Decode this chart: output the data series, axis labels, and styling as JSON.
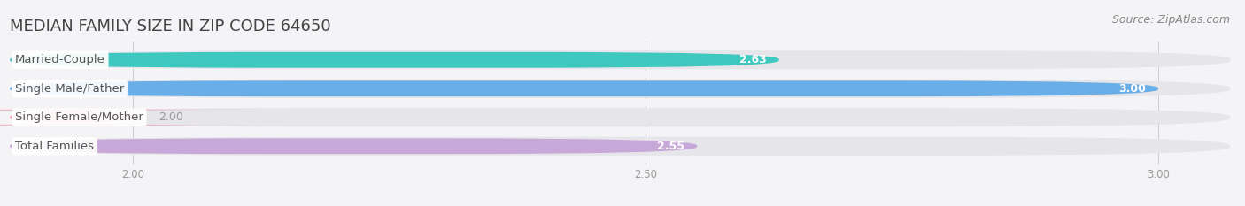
{
  "title": "MEDIAN FAMILY SIZE IN ZIP CODE 64650",
  "source": "Source: ZipAtlas.com",
  "categories": [
    "Married-Couple",
    "Single Male/Father",
    "Single Female/Mother",
    "Total Families"
  ],
  "values": [
    2.63,
    3.0,
    2.0,
    2.55
  ],
  "bar_colors": [
    "#3ec8c0",
    "#6aaee8",
    "#f4a0b5",
    "#c8a8d8"
  ],
  "track_color": "#e5e5ea",
  "xlim": [
    1.88,
    3.07
  ],
  "xticks": [
    2.0,
    2.5,
    3.0
  ],
  "xtick_labels": [
    "2.00",
    "2.50",
    "3.00"
  ],
  "label_color": "#555555",
  "value_color_inside": "#ffffff",
  "value_color_outside": "#999999",
  "title_fontsize": 13,
  "label_fontsize": 9.5,
  "value_fontsize": 9,
  "source_fontsize": 9,
  "background_color": "#f4f4f7"
}
